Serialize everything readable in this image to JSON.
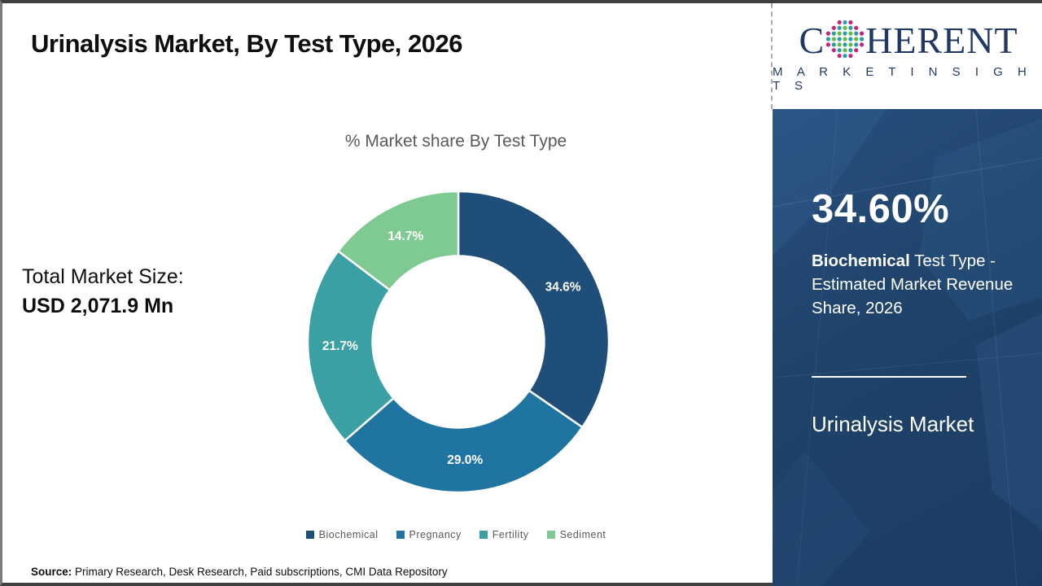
{
  "page": {
    "title": "Urinalysis Market, By Test Type, 2026",
    "source_label": "Source:",
    "source_text": " Primary Research, Desk Research, Paid subscriptions, CMI Data Repository"
  },
  "left_panel": {
    "market_size_label": "Total Market Size:",
    "market_size_value": "USD 2,071.9 Mn"
  },
  "chart_data": {
    "type": "donut",
    "title": "% Market share By Test Type",
    "categories": [
      "Biochemical",
      "Pregnancy",
      "Fertility",
      "Sediment"
    ],
    "values": [
      34.6,
      29.0,
      21.7,
      14.7
    ],
    "slice_labels": [
      "34.6%",
      "29.0%",
      "21.7%",
      "14.7%"
    ],
    "colors": [
      "#1F4E79",
      "#1F74A2",
      "#3BA0A4",
      "#7FC993"
    ],
    "start_angle_deg": 0,
    "direction": "clockwise",
    "inner_radius_ratio": 0.57,
    "legend_position": "bottom",
    "label_color": "#ffffff"
  },
  "sidebar": {
    "stat_value": "34.60%",
    "stat_desc_bold": "Biochemical",
    "stat_desc_rest": " Test Type - Estimated Market Revenue Share, 2026",
    "market_name": "Urinalysis Market",
    "background_color": "#1F4269"
  },
  "logo": {
    "part1": "C",
    "part2": "HERENT",
    "line2": "M A R K E T   I N S I G H T S",
    "navy": "#203864",
    "dot_colors": {
      "magenta": "#C2247E",
      "teal": "#2D9AA8",
      "green": "#63BC46"
    }
  }
}
